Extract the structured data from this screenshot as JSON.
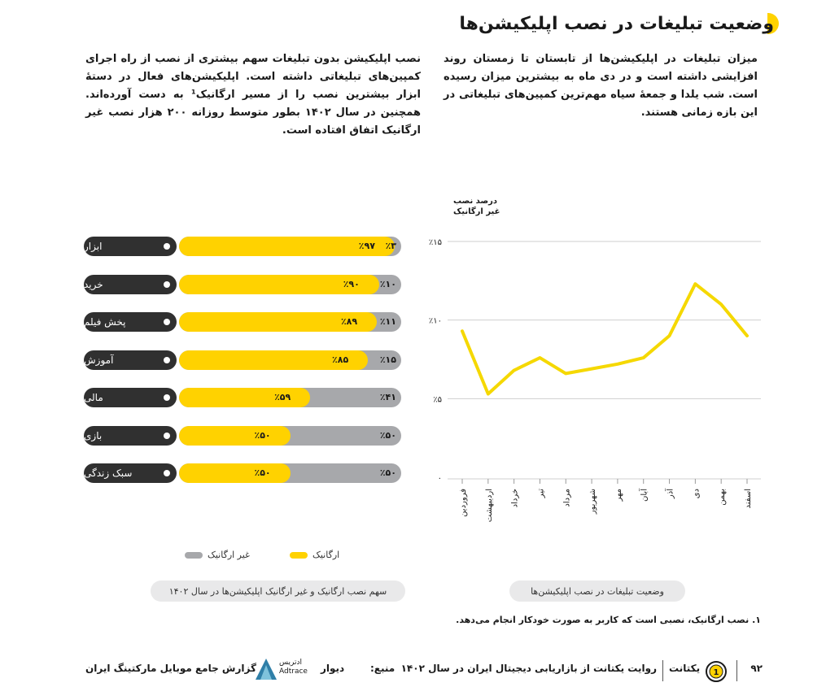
{
  "header": {
    "title": "وضعیت تبلیغات در نصب اپلیکیشن‌ها"
  },
  "paragraphs": {
    "right": "میزان تبلیغات در اپلیکیشن‌ها از تابستان تا زمستان روند افزایشی داشته است و در دی ماه به بیشترین میزان رسیده است. شب یلدا و جمعهٔ سیاه مهم‌ترین کمپین‌های تبلیغاتی در این بازه زمانی هستند.",
    "left": "نصب اپلیکیشن بدون تبلیغات سهم بیشتری از نصب از راه اجرای کمپین‌های تبلیغاتی داشته است. اپلیکیشن‌های فعال در دستهٔ ابزار بیشترین نصب را از مسیر ارگانیک¹ به دست آورده‌اند. همچنین در سال ۱۴۰۲ بطور متوسط روزانه ۲۰۰ هزار نصب غیر ارگانیک اتفاق افتاده است."
  },
  "chart_data": [
    {
      "type": "bar",
      "orientation": "horizontal",
      "stacked": true,
      "caption": "سهم نصب ارگانیک و غیر ارگانیک اپلیکیشن‌ها در سال ۱۴۰۲",
      "categories": [
        "ابزار",
        "خرید",
        "پخش فیلم",
        "آموزش",
        "مالی",
        "بازی",
        "سبک زندگی"
      ],
      "series": [
        {
          "name": "ارگانیک",
          "values": [
            97,
            90,
            89,
            85,
            59,
            50,
            50
          ],
          "labels": [
            "٪۹۷",
            "٪۹۰",
            "٪۸۹",
            "٪۸۵",
            "٪۵۹",
            "٪۵۰",
            "٪۵۰"
          ]
        },
        {
          "name": "غیر ارگانیک",
          "values": [
            3,
            10,
            11,
            15,
            41,
            50,
            50
          ],
          "labels": [
            "٪۳",
            "٪۱۰",
            "٪۱۱",
            "٪۱۵",
            "٪۴۱",
            "٪۵۰",
            "٪۵۰"
          ]
        }
      ],
      "xlim": [
        0,
        100
      ],
      "colors": {
        "organic": "#ffd200",
        "non_organic": "#a7a8ab",
        "label_pill": "#303030"
      }
    },
    {
      "type": "line",
      "caption": "وضعیت تبلیغات در نصب اپلیکیشن‌ها",
      "ylabel": "درصد نصب غیر ارگانیک",
      "x": [
        "فروردین",
        "اردیبهشت",
        "خرداد",
        "تیر",
        "مرداد",
        "شهریور",
        "مهر",
        "آبان",
        "آذر",
        "دی",
        "بهمن",
        "اسفند"
      ],
      "values": [
        9.3,
        5.3,
        6.8,
        7.6,
        6.6,
        6.9,
        7.2,
        7.6,
        9.0,
        12.3,
        11.0,
        9.0
      ],
      "ylim": [
        0,
        15
      ],
      "yticks": [
        0,
        5,
        10,
        15
      ],
      "ytick_labels": [
        "۰",
        "٪۵",
        "٪۱۰",
        "٪۱۵"
      ],
      "grid": true,
      "color": "#f5d800"
    }
  ],
  "legend": {
    "organic": "ارگانیک",
    "non_organic": "غیر ارگانیک"
  },
  "footnote": "۱. نصب ارگانیک، نصبی است که کاربر به صورت خودکار انجام می‌دهد.",
  "footer": {
    "page_number": "۹۲",
    "report_title": "روایت یکتانت از بازاریابی دیجیتال ایران در سال ۱۴۰۲",
    "report_logo_text": "یکتانت",
    "source_label": "منبع:",
    "source_mark_1": "ادتریس",
    "source_mark_2": "Adtrace",
    "source_mark_3": "دیوار",
    "report_series": "گزارش جامع موبایل مارکتینگ ایران"
  }
}
